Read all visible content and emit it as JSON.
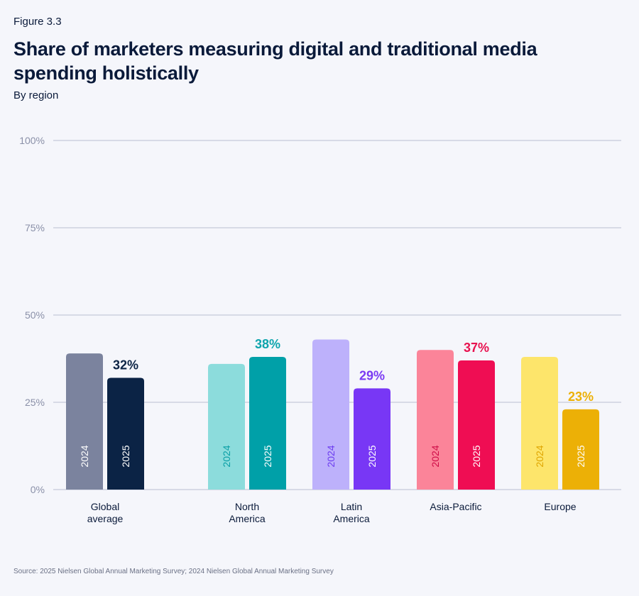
{
  "figure_label": "Figure 3.3",
  "title": "Share of marketers measuring digital and traditional media spending holistically",
  "subtitle": "By region",
  "source": "Source: 2025 Nielsen Global Annual Marketing Survey; 2024 Nielsen Global Annual Marketing Survey",
  "chart_data": {
    "type": "bar",
    "categories": [
      "Global average",
      "North America",
      "Latin America",
      "Asia-Pacific",
      "Europe"
    ],
    "category_label_lines": [
      [
        "Global",
        "average"
      ],
      [
        "North",
        "America"
      ],
      [
        "Latin",
        "America"
      ],
      [
        "Asia-Pacific"
      ],
      [
        "Europe"
      ]
    ],
    "series": [
      {
        "name": "2024",
        "values": [
          39,
          36,
          43,
          40,
          38
        ]
      },
      {
        "name": "2025",
        "values": [
          32,
          38,
          29,
          37,
          23
        ]
      }
    ],
    "data_labels": [
      "32%",
      "38%",
      "29%",
      "37%",
      "23%"
    ],
    "yticks": [
      "0%",
      "25%",
      "50%",
      "75%",
      "100%"
    ],
    "ylim": [
      0,
      100
    ],
    "grid": true,
    "colors": {
      "2024": [
        "#7b839e",
        "#8cdcdc",
        "#bdb1fb",
        "#fb8499",
        "#fde56b"
      ],
      "2025": [
        "#0b2345",
        "#00a0a8",
        "#7837f5",
        "#ef0d53",
        "#ecb006"
      ],
      "label_text_2024": [
        "#ffffff",
        "#0a9fa6",
        "#6c3cf0",
        "#cf0c47",
        "#e0a600"
      ],
      "label_text_2025": [
        "#ffffff",
        "#ffffff",
        "#ffffff",
        "#ffffff",
        "#ffffff"
      ],
      "data_label": [
        "#0b2345",
        "#0fa5ad",
        "#7a3af3",
        "#e8124f",
        "#ecb006"
      ],
      "grid": "#b9bfd2",
      "tick": "#8a90a8"
    }
  }
}
